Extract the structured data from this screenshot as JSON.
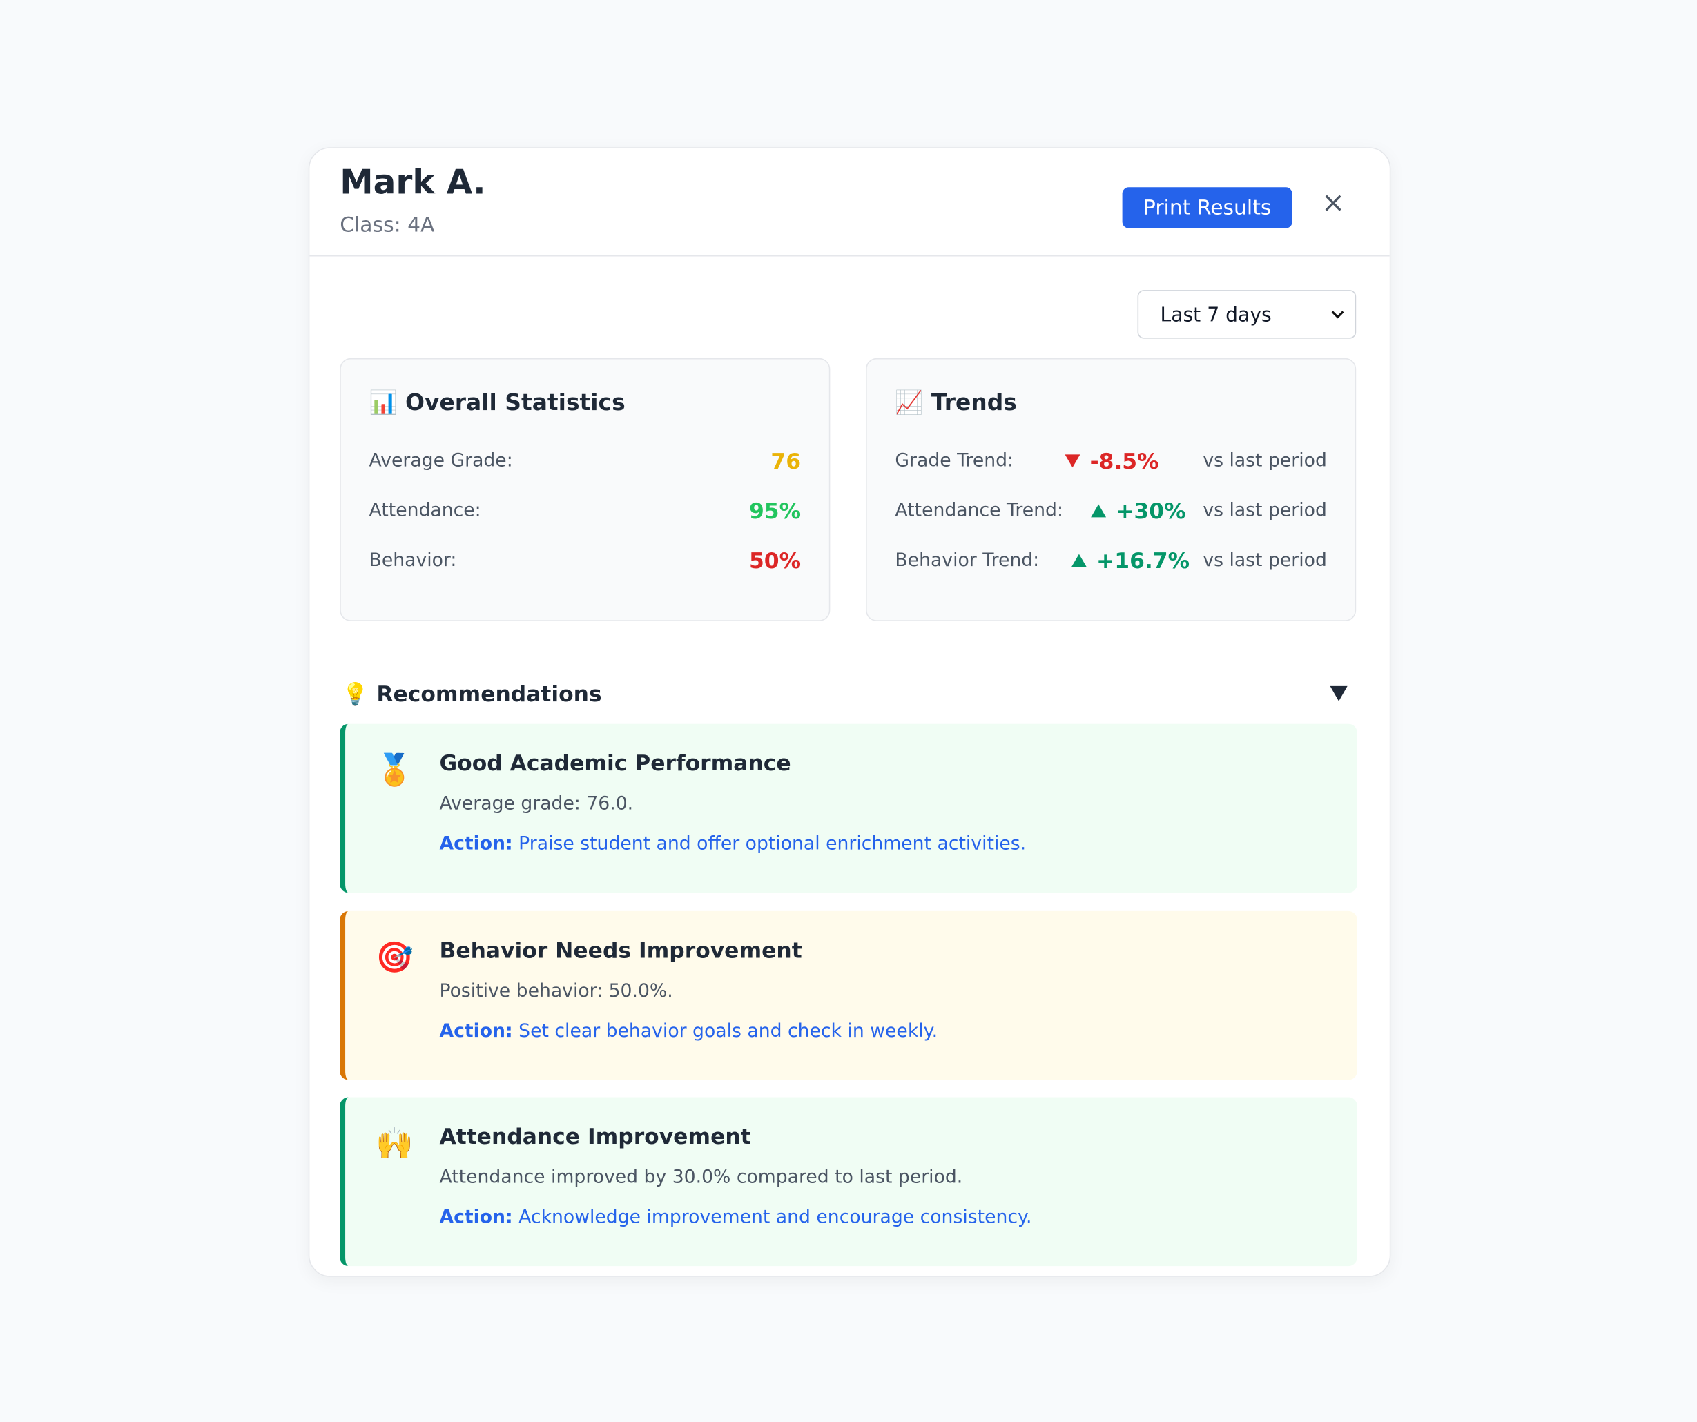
{
  "header": {
    "name": "Mark A.",
    "class": "Class: 4A",
    "print_button": "Print Results",
    "close": "×"
  },
  "period_select": "Last 7 days",
  "overall": {
    "icon": "📊",
    "title": "Overall Statistics",
    "rows": [
      {
        "label": "Average Grade:",
        "value": "76",
        "color": "#eab308"
      },
      {
        "label": "Attendance:",
        "value": "95%",
        "color": "#22c55e"
      },
      {
        "label": "Behavior:",
        "value": "50%",
        "color": "#dc2626"
      }
    ]
  },
  "trends": {
    "icon": "📈",
    "title": "Trends",
    "rows": [
      {
        "label": "Grade Trend:",
        "direction": "down",
        "value": "-8.5%",
        "note": "vs last period",
        "color": "#dc2626"
      },
      {
        "label": "Attendance Trend:",
        "direction": "up",
        "value": "+30%",
        "note": "vs last period",
        "color": "#059669"
      },
      {
        "label": "Behavior Trend:",
        "direction": "up",
        "value": "+16.7%",
        "note": "vs last period",
        "color": "#059669"
      }
    ]
  },
  "recommendations": {
    "icon": "💡",
    "title": "Recommendations",
    "items": [
      {
        "icon": "🏅",
        "title": "Good Academic Performance",
        "description": "Average grade: 76.0.",
        "action_label": "Action:",
        "action": "Praise student and offer optional enrichment activities.",
        "accent": "#059669",
        "background": "#f0fdf4"
      },
      {
        "icon": "🎯",
        "title": "Behavior Needs Improvement",
        "description": "Positive behavior: 50.0%.",
        "action_label": "Action:",
        "action": "Set clear behavior goals and check in weekly.",
        "accent": "#d97706",
        "background": "#fffbeb"
      },
      {
        "icon": "🙌",
        "title": "Attendance Improvement",
        "description": "Attendance improved by 30.0% compared to last period.",
        "action_label": "Action:",
        "action": "Acknowledge improvement and encourage consistency.",
        "accent": "#059669",
        "background": "#f0fdf4"
      }
    ]
  }
}
